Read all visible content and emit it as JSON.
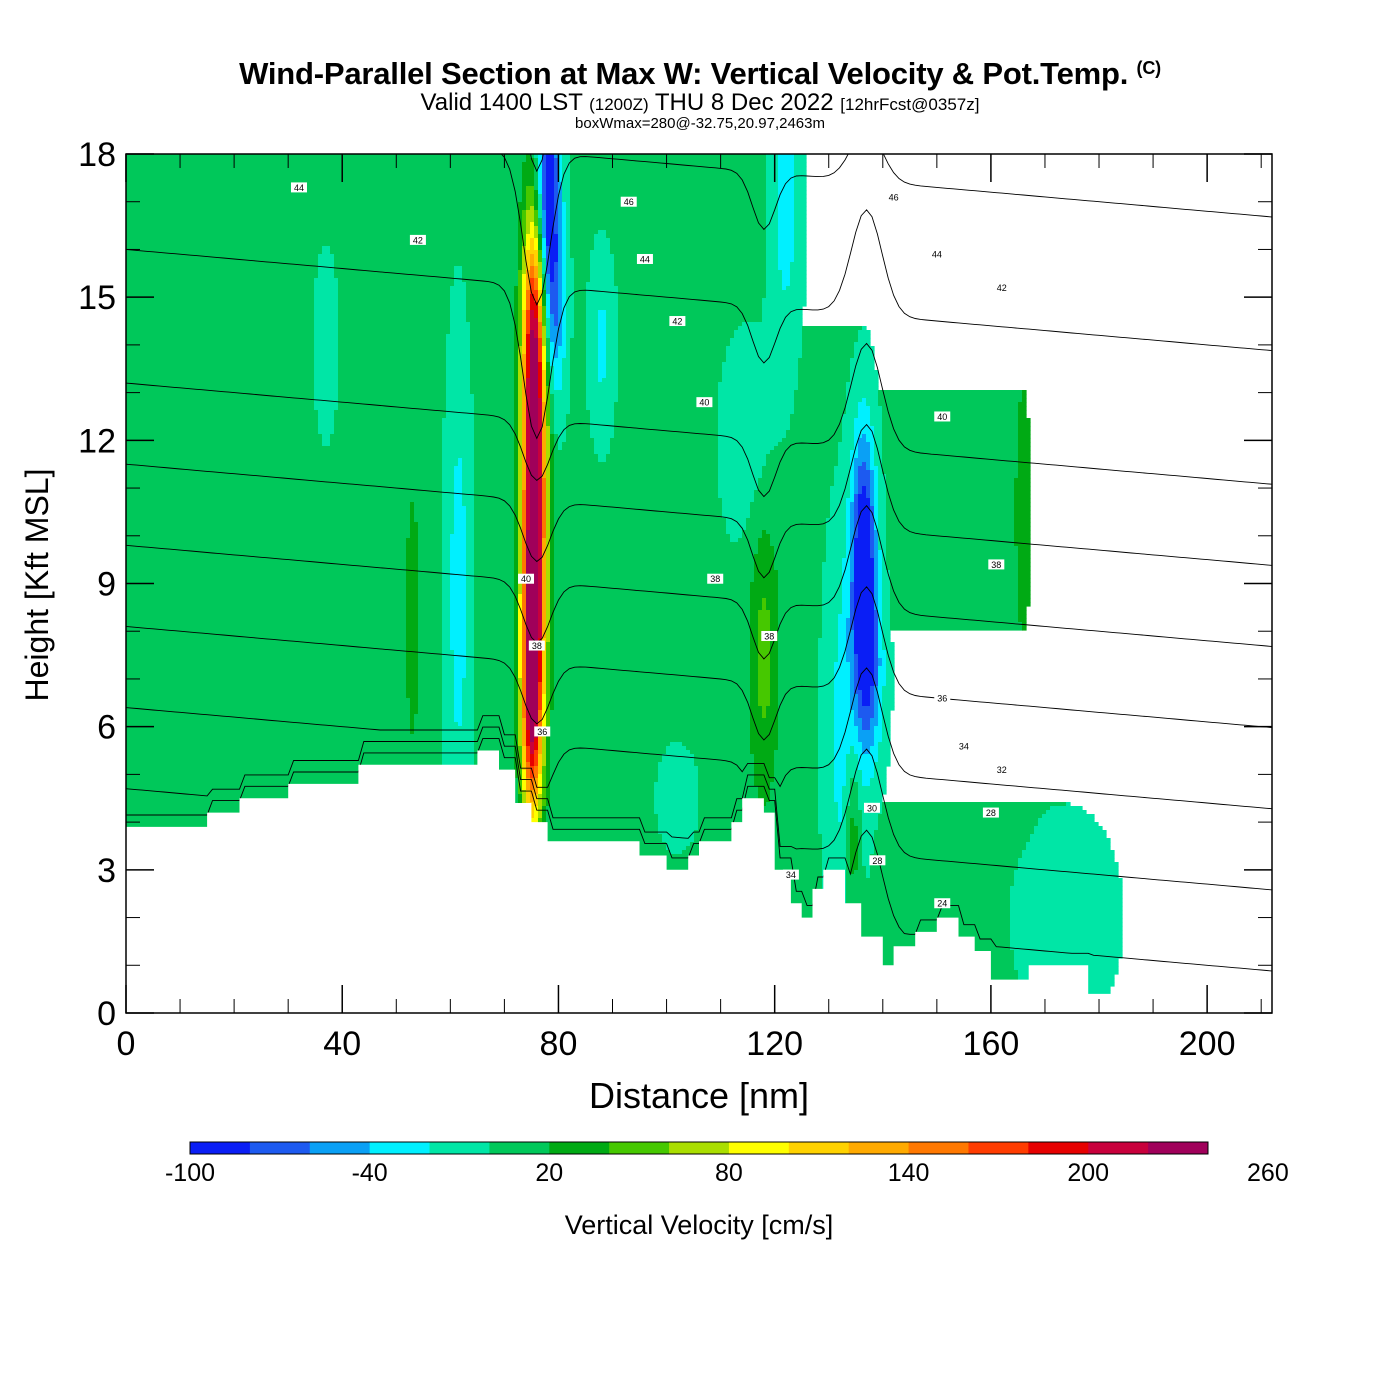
{
  "title": {
    "main": "Wind-Parallel Section at Max W: Vertical Velocity & Pot.Temp.",
    "copyright": "(C)",
    "valid_prefix": "Valid 1400 LST",
    "valid_utc": "(1200Z)",
    "valid_date": "THU 8 Dec 2022",
    "forecast": "[12hrFcst@0357z]",
    "box_info": "boxWmax=280@-32.75,20.97,2463m"
  },
  "chart_data": {
    "type": "heatmap",
    "xlabel": "Distance [nm]",
    "ylabel": "Height [Kft MSL]",
    "xlim": [
      0,
      212
    ],
    "ylim": [
      0,
      18
    ],
    "x_ticks": [
      0,
      40,
      80,
      120,
      160,
      200
    ],
    "y_ticks": [
      0,
      3,
      6,
      9,
      12,
      15,
      18
    ],
    "background_value": 5,
    "terrain": [
      [
        0,
        3.9
      ],
      [
        15,
        3.9
      ],
      [
        15,
        4.2
      ],
      [
        21,
        4.2
      ],
      [
        21,
        4.5
      ],
      [
        30,
        4.5
      ],
      [
        30,
        4.8
      ],
      [
        43,
        4.8
      ],
      [
        43,
        5.2
      ],
      [
        65,
        5.2
      ],
      [
        65,
        5.5
      ],
      [
        69,
        5.5
      ],
      [
        69,
        5.1
      ],
      [
        72,
        5.1
      ],
      [
        72,
        4.4
      ],
      [
        75,
        4.4
      ],
      [
        75,
        4.0
      ],
      [
        78,
        4.0
      ],
      [
        78,
        3.6
      ],
      [
        95,
        3.6
      ],
      [
        95,
        3.3
      ],
      [
        100,
        3.3
      ],
      [
        100,
        3.0
      ],
      [
        104,
        3.0
      ],
      [
        104,
        3.3
      ],
      [
        106,
        3.3
      ],
      [
        106,
        3.6
      ],
      [
        112,
        3.6
      ],
      [
        112,
        4.0
      ],
      [
        114,
        4.0
      ],
      [
        114,
        4.5
      ],
      [
        118,
        4.5
      ],
      [
        118,
        4.2
      ],
      [
        120,
        4.2
      ],
      [
        120,
        3.0
      ],
      [
        123,
        3.0
      ],
      [
        123,
        2.3
      ],
      [
        125,
        2.3
      ],
      [
        125,
        2.0
      ],
      [
        127,
        2.0
      ],
      [
        127,
        2.6
      ],
      [
        129,
        2.6
      ],
      [
        129,
        3.0
      ],
      [
        133,
        3.0
      ],
      [
        133,
        2.3
      ],
      [
        136,
        2.3
      ],
      [
        136,
        1.6
      ],
      [
        140,
        1.6
      ],
      [
        140,
        1.0
      ],
      [
        142,
        1.0
      ],
      [
        142,
        1.4
      ],
      [
        146,
        1.4
      ],
      [
        146,
        1.7
      ],
      [
        150,
        1.7
      ],
      [
        150,
        2.0
      ],
      [
        154,
        2.0
      ],
      [
        154,
        1.6
      ],
      [
        157,
        1.6
      ],
      [
        157,
        1.3
      ],
      [
        160,
        1.3
      ],
      [
        160,
        0.7
      ],
      [
        167,
        0.7
      ],
      [
        167,
        1.0
      ],
      [
        178,
        1.0
      ],
      [
        178,
        0.4
      ],
      [
        212,
        0.4
      ]
    ],
    "contour_interval": 2,
    "contour_levels": [
      24,
      26,
      28,
      30,
      32,
      34,
      36,
      38,
      40,
      42,
      44,
      46,
      48
    ],
    "contour_labels": [
      {
        "text": "44",
        "x": 32,
        "y": 17.3
      },
      {
        "text": "42",
        "x": 54,
        "y": 16.2
      },
      {
        "text": "46",
        "x": 93,
        "y": 17.0
      },
      {
        "text": "44",
        "x": 96,
        "y": 15.8
      },
      {
        "text": "42",
        "x": 102,
        "y": 14.5
      },
      {
        "text": "40",
        "x": 107,
        "y": 12.8
      },
      {
        "text": "46",
        "x": 142,
        "y": 17.1
      },
      {
        "text": "44",
        "x": 150,
        "y": 15.9
      },
      {
        "text": "42",
        "x": 162,
        "y": 15.2
      },
      {
        "text": "40",
        "x": 151,
        "y": 12.5
      },
      {
        "text": "40",
        "x": 74,
        "y": 9.1
      },
      {
        "text": "38",
        "x": 76,
        "y": 7.7
      },
      {
        "text": "38",
        "x": 109,
        "y": 9.1
      },
      {
        "text": "38",
        "x": 119,
        "y": 7.9
      },
      {
        "text": "36",
        "x": 77,
        "y": 5.9
      },
      {
        "text": "36",
        "x": 151,
        "y": 6.6
      },
      {
        "text": "38",
        "x": 161,
        "y": 9.4
      },
      {
        "text": "34",
        "x": 155,
        "y": 5.6
      },
      {
        "text": "32",
        "x": 162,
        "y": 5.1
      },
      {
        "text": "28",
        "x": 160,
        "y": 4.2
      },
      {
        "text": "30",
        "x": 138,
        "y": 4.3
      },
      {
        "text": "28",
        "x": 139,
        "y": 3.2
      },
      {
        "text": "34",
        "x": 123,
        "y": 2.9
      },
      {
        "text": "24",
        "x": 151,
        "y": 2.3
      }
    ],
    "w_features": [
      {
        "x": 75.5,
        "y": 10.5,
        "sx": 1.6,
        "sy": 3.2,
        "amp": 250
      },
      {
        "x": 75.5,
        "y": 14.5,
        "sx": 1.4,
        "sy": 1.8,
        "amp": 110
      },
      {
        "x": 75.0,
        "y": 6.5,
        "sx": 1.3,
        "sy": 1.8,
        "amp": 150
      },
      {
        "x": 78.0,
        "y": 17.0,
        "sx": 1.6,
        "sy": 1.9,
        "amp": -110
      },
      {
        "x": 79.5,
        "y": 14.6,
        "sx": 1.4,
        "sy": 1.5,
        "amp": -45
      },
      {
        "x": 136.5,
        "y": 9.3,
        "sx": 1.6,
        "sy": 2.0,
        "amp": -120
      },
      {
        "x": 138.0,
        "y": 7.0,
        "sx": 1.8,
        "sy": 1.3,
        "amp": -45
      },
      {
        "x": 133.0,
        "y": 5.8,
        "sx": 2.5,
        "sy": 3.0,
        "amp": -35
      },
      {
        "x": 134.5,
        "y": 3.8,
        "sx": 1.0,
        "sy": 1.3,
        "amp": 45
      },
      {
        "x": 118.0,
        "y": 7.5,
        "sx": 2.0,
        "sy": 2.2,
        "amp": 42
      },
      {
        "x": 61.5,
        "y": 8.8,
        "sx": 1.6,
        "sy": 3.5,
        "amp": -35
      },
      {
        "x": 53.0,
        "y": 8.3,
        "sx": 1.3,
        "sy": 2.8,
        "amp": 22
      },
      {
        "x": 37.0,
        "y": 14.0,
        "sx": 2.5,
        "sy": 2.2,
        "amp": -8
      },
      {
        "x": 122.0,
        "y": 17.0,
        "sx": 2.0,
        "sy": 2.2,
        "amp": -35
      },
      {
        "x": 115.0,
        "y": 12.0,
        "sx": 3.5,
        "sy": 1.5,
        "amp": -20
      },
      {
        "x": 88.0,
        "y": 14.0,
        "sx": 1.6,
        "sy": 1.3,
        "amp": -30
      },
      {
        "x": 166.0,
        "y": 10.5,
        "sx": 1.4,
        "sy": 2.5,
        "amp": 25
      },
      {
        "x": 102.0,
        "y": 4.5,
        "sx": 3.5,
        "sy": 1.0,
        "amp": -10
      },
      {
        "x": 174.0,
        "y": 2.0,
        "sx": 8.0,
        "sy": 1.8,
        "amp": -12
      }
    ],
    "colorbar": {
      "label": "Vertical Velocity [cm/s]",
      "min": -100,
      "step": 20,
      "tick_labels": [
        "-100",
        "-40",
        "20",
        "80",
        "140",
        "200",
        "260"
      ],
      "tick_values": [
        -100,
        -40,
        20,
        80,
        140,
        200,
        260
      ],
      "colors": [
        "#0a1ef5",
        "#1d5af0",
        "#0aa0f5",
        "#00f0ff",
        "#00e6a6",
        "#00c85a",
        "#00aa14",
        "#46c800",
        "#aade00",
        "#ffff00",
        "#ffd200",
        "#ffaa00",
        "#ff7800",
        "#ff3c00",
        "#e60000",
        "#c8003c",
        "#a0005a"
      ]
    }
  }
}
